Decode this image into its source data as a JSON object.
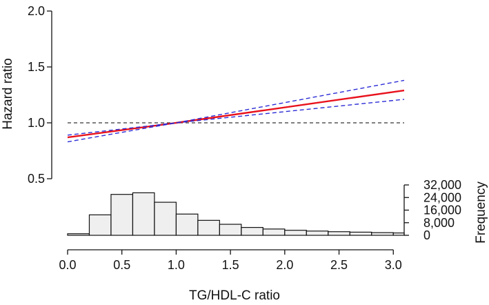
{
  "chart_data": {
    "type": "line",
    "xlabel": "TG/HDL-C ratio",
    "ylabel": "Hazard ratio",
    "ylabel_right": "Frequency",
    "xlim": [
      0,
      3.1
    ],
    "ylim": [
      0.5,
      2.0
    ],
    "x_ticks": [
      "0.0",
      "0.5",
      "1.0",
      "1.5",
      "2.0",
      "2.5",
      "3.0"
    ],
    "y_ticks": [
      "0.5",
      "1.0",
      "1.5",
      "2.0"
    ],
    "reference_line": 1.0,
    "series": [
      {
        "style": "solid",
        "color": "#e8111b",
        "x": [
          0,
          1.0,
          3.1
        ],
        "y": [
          0.87,
          1.0,
          1.29
        ]
      },
      {
        "style": "dashed",
        "color": "#2b2bd6",
        "x": [
          0,
          1.0,
          3.1
        ],
        "y": [
          0.89,
          1.0,
          1.38
        ]
      },
      {
        "style": "dashed",
        "color": "#2b2bd6",
        "x": [
          0,
          1.0,
          3.1
        ],
        "y": [
          0.83,
          1.0,
          1.21
        ]
      }
    ],
    "histogram": {
      "bins": [
        0.0,
        0.2,
        0.4,
        0.6,
        0.8,
        1.0,
        1.2,
        1.4,
        1.6,
        1.8,
        2.0,
        2.2,
        2.4,
        2.6,
        2.8,
        3.0,
        3.1
      ],
      "counts": [
        1000,
        13000,
        26000,
        27000,
        21000,
        13500,
        9500,
        7000,
        5000,
        4000,
        3200,
        2700,
        2300,
        2000,
        1700,
        1500
      ],
      "ylim": [
        0,
        32000
      ],
      "y_ticks": [
        "0",
        "8,000",
        "16,000",
        "24,000",
        "32,000"
      ]
    }
  }
}
